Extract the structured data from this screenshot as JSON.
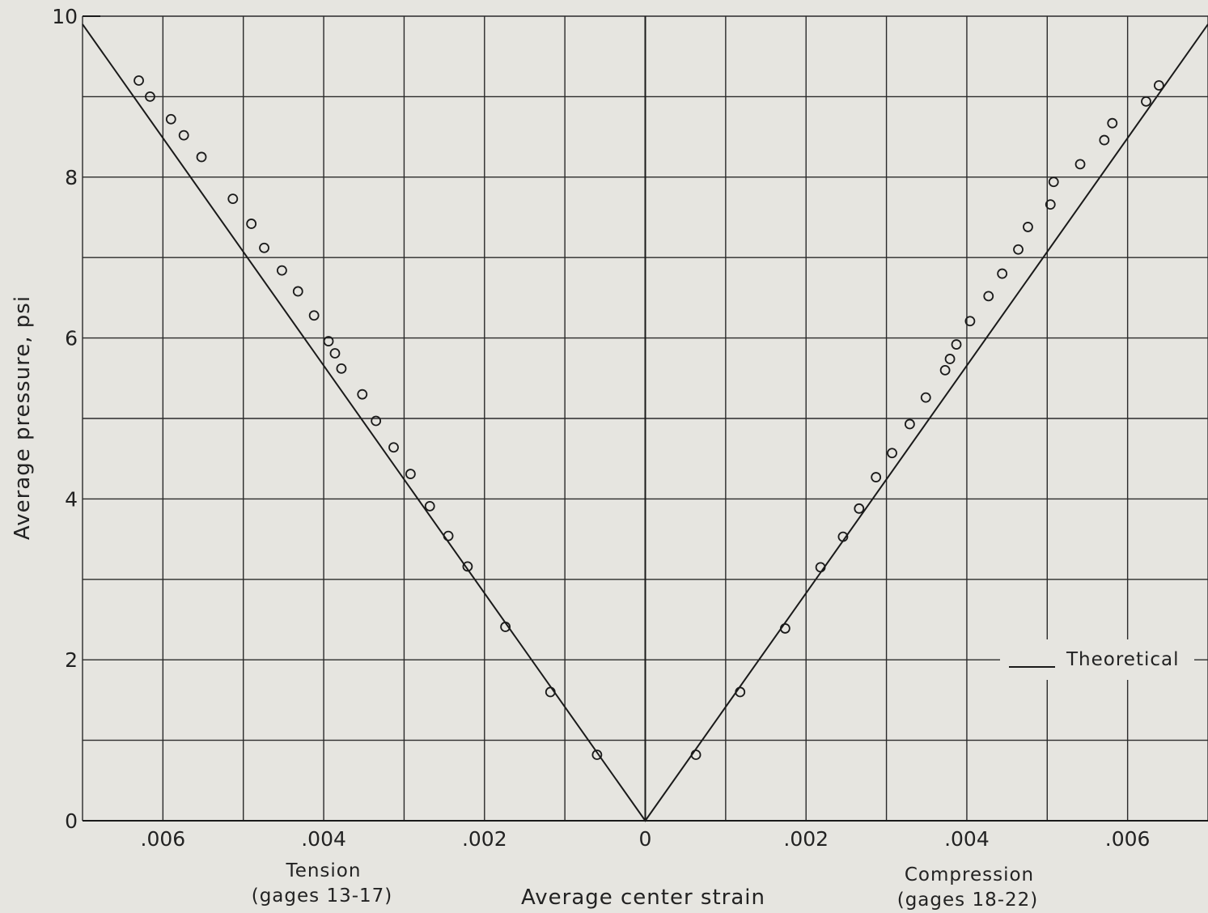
{
  "chart_data": {
    "type": "scatter",
    "xlabel": "Average  center strain",
    "ylabel": "Average pressure, psi",
    "x_ticks": [
      ".006",
      ".004",
      ".002",
      "0",
      ".002",
      ".004",
      ".006"
    ],
    "y_ticks": [
      "0",
      "2",
      "4",
      "6",
      "8",
      "10"
    ],
    "sublabels": {
      "tension": [
        "Tension",
        "(gages 13-17)"
      ],
      "compression": [
        "Compression",
        "(gages 18-22)"
      ]
    },
    "legend": {
      "label": "Theoretical",
      "placement": "right"
    },
    "xlim": [
      -0.007,
      0.007
    ],
    "ylim": [
      0,
      10
    ],
    "grid": true,
    "theoretical": {
      "name": "Theoretical",
      "points": [
        [
          -0.007,
          9.9
        ],
        [
          0,
          0
        ],
        [
          0.007,
          9.9
        ]
      ]
    },
    "series": [
      {
        "group": "Tension (gages 13-17)",
        "x": [
          -0.0063,
          -0.00616,
          -0.0059,
          -0.00574,
          -0.00552,
          -0.00513,
          -0.0049,
          -0.00474,
          -0.00452,
          -0.00432,
          -0.00412,
          -0.00394,
          -0.00386,
          -0.00378,
          -0.00352,
          -0.00335,
          -0.00313,
          -0.00292,
          -0.00268,
          -0.00245,
          -0.00221,
          -0.00174,
          -0.00118,
          -0.0006
        ],
        "y": [
          9.2,
          9.0,
          8.72,
          8.52,
          8.25,
          7.73,
          7.42,
          7.12,
          6.84,
          6.58,
          6.28,
          5.96,
          5.81,
          5.62,
          5.3,
          4.97,
          4.64,
          4.31,
          3.91,
          3.54,
          3.16,
          2.41,
          1.6,
          0.82
        ]
      },
      {
        "group": "Compression (gages 18-22)",
        "x": [
          0.00063,
          0.00118,
          0.00174,
          0.00218,
          0.00246,
          0.00266,
          0.00287,
          0.00307,
          0.00329,
          0.00349,
          0.00373,
          0.00379,
          0.00387,
          0.00404,
          0.00427,
          0.00444,
          0.00464,
          0.00476,
          0.00504,
          0.00508,
          0.00541,
          0.00571,
          0.00581,
          0.00623,
          0.00639
        ],
        "y": [
          0.82,
          1.6,
          2.39,
          3.15,
          3.53,
          3.88,
          4.27,
          4.57,
          4.93,
          5.26,
          5.6,
          5.74,
          5.92,
          6.21,
          6.52,
          6.8,
          7.1,
          7.38,
          7.66,
          7.94,
          8.16,
          8.46,
          8.67,
          8.94,
          9.14
        ]
      }
    ]
  }
}
